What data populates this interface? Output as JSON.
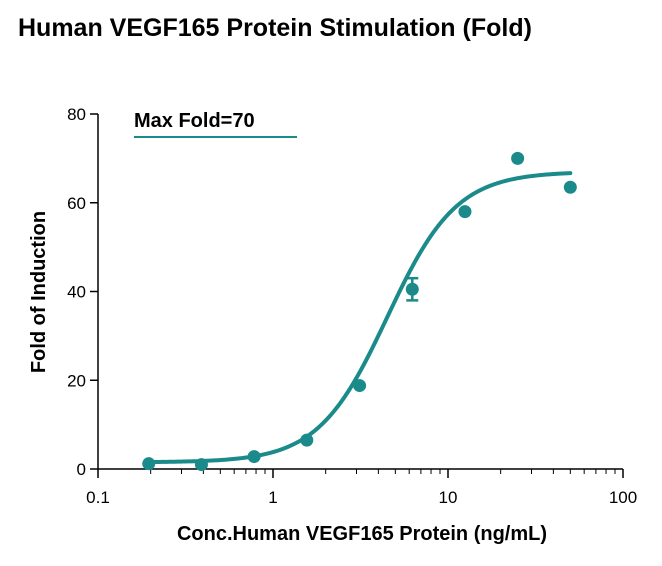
{
  "chart_data": {
    "type": "scatter",
    "title": "Human VEGF165 Protein Stimulation (Fold)",
    "xlabel": "Conc.Human VEGF165 Protein (ng/mL)",
    "ylabel": "Fold of Induction",
    "xscale": "log",
    "xlim": [
      0.1,
      100
    ],
    "ylim": [
      0,
      80
    ],
    "xticks": [
      0.1,
      1,
      10,
      100
    ],
    "xtick_labels": [
      "0.1",
      "1",
      "10",
      "100"
    ],
    "yticks": [
      0,
      20,
      40,
      60,
      80
    ],
    "ytick_labels": [
      "0",
      "20",
      "40",
      "60",
      "80"
    ],
    "annotation": "Max Fold=70",
    "grid": false,
    "color": "#1b8a8a",
    "series": [
      {
        "x": [
          0.195,
          0.39,
          0.78,
          1.56,
          3.125,
          6.25,
          12.5,
          25,
          50
        ],
        "y": [
          1.2,
          1.0,
          2.8,
          6.5,
          18.8,
          40.5,
          58.0,
          70.0,
          63.5
        ],
        "error": [
          0,
          0,
          0,
          0,
          0,
          2.5,
          0,
          0,
          0
        ]
      }
    ],
    "fit_curve": {
      "type": "4PL",
      "bottom": 1.5,
      "top": 67,
      "ec50": 4.5,
      "hill": 2.2
    }
  }
}
